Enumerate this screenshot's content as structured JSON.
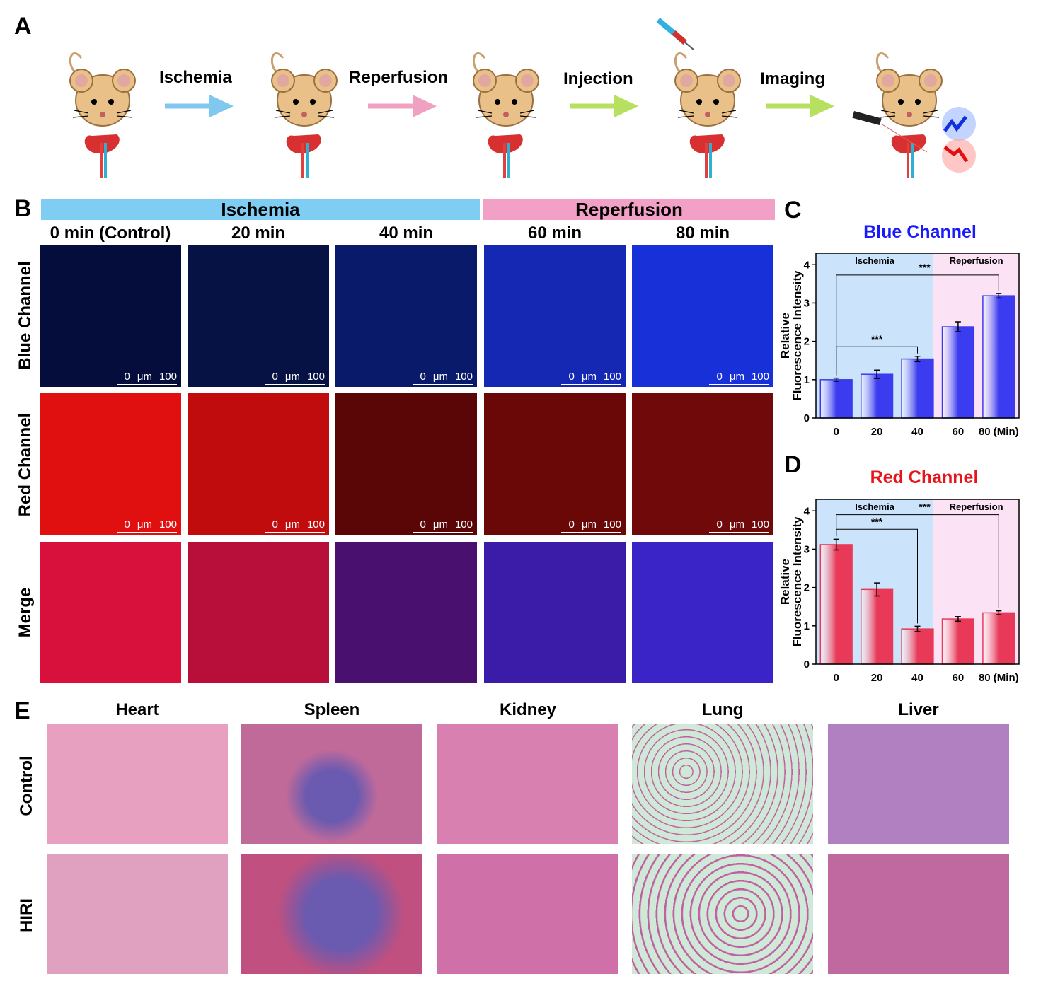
{
  "panels": {
    "A": "A",
    "B": "B",
    "C": "C",
    "D": "D",
    "E": "E"
  },
  "panel_a": {
    "steps": [
      "Ischemia",
      "Reperfusion",
      "Injection",
      "Imaging"
    ],
    "arrow_colors": [
      "#80c8f0",
      "#f0a0c0",
      "#b8e060",
      "#b8e060"
    ]
  },
  "panel_b": {
    "band_ischemia": "Ischemia",
    "band_reperfusion": "Reperfusion",
    "band_colors": {
      "ischemia": "#7fcdf2",
      "reperfusion": "#f2a0c6"
    },
    "columns": [
      "0 min (Control)",
      "20 min",
      "40 min",
      "60 min",
      "80 min"
    ],
    "rows": [
      "Blue Channel",
      "Red Channel",
      "Merge"
    ],
    "scale": {
      "start": "0",
      "unit": "μm",
      "end": "100"
    }
  },
  "chart_data": [
    {
      "type": "bar",
      "title": "Blue Channel",
      "title_color": "#1a1aff",
      "ylabel_line1": "Relative",
      "ylabel_line2": "Fluorescence Intensity",
      "categories": [
        "0",
        "20",
        "40",
        "60",
        "80 (Min)"
      ],
      "values": [
        1.0,
        1.14,
        1.54,
        2.38,
        3.19
      ],
      "errors": [
        0.04,
        0.11,
        0.07,
        0.13,
        0.06
      ],
      "ylim": [
        0,
        4.3
      ],
      "yticks": [
        "0",
        "1",
        "2",
        "3",
        "4"
      ],
      "regions": [
        {
          "label": "Ischemia",
          "color": "#cce4fb"
        },
        {
          "label": "Reperfusion",
          "color": "#fbe3f5"
        }
      ],
      "significance": [
        "***",
        "***"
      ],
      "bar_color": "#3b3bf0"
    },
    {
      "type": "bar",
      "title": "Red Channel",
      "title_color": "#e8141c",
      "ylabel_line1": "Relative",
      "ylabel_line2": "Fluorescence Intensity",
      "categories": [
        "0",
        "20",
        "40",
        "60",
        "80 (Min)"
      ],
      "values": [
        3.12,
        1.95,
        0.92,
        1.18,
        1.34
      ],
      "errors": [
        0.14,
        0.17,
        0.07,
        0.06,
        0.05
      ],
      "ylim": [
        0,
        4.3
      ],
      "yticks": [
        "0",
        "1",
        "2",
        "3",
        "4"
      ],
      "regions": [
        {
          "label": "Ischemia",
          "color": "#cce4fb"
        },
        {
          "label": "Reperfusion",
          "color": "#fbe3f5"
        }
      ],
      "significance": [
        "***",
        "***"
      ],
      "bar_color": "#e83a58"
    }
  ],
  "panel_e": {
    "organs": [
      "Heart",
      "Spleen",
      "Kidney",
      "Lung",
      "Liver"
    ],
    "rows": [
      "Control",
      "HIRI"
    ]
  }
}
